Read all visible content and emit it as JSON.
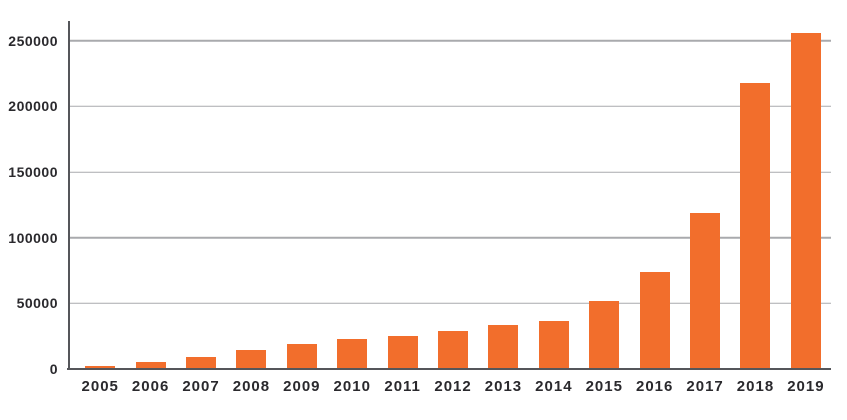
{
  "chart_data": {
    "type": "bar",
    "title": "",
    "xlabel": "",
    "ylabel": "",
    "categories": [
      "2005",
      "2006",
      "2007",
      "2008",
      "2009",
      "2010",
      "2011",
      "2012",
      "2013",
      "2014",
      "2015",
      "2016",
      "2017",
      "2018",
      "2019"
    ],
    "values": [
      2000,
      5500,
      9500,
      14500,
      19000,
      22500,
      25000,
      29000,
      33500,
      36500,
      51500,
      74000,
      119000,
      218000,
      255500
    ],
    "yticks": [
      0,
      50000,
      100000,
      150000,
      200000,
      250000
    ],
    "ylim": [
      0,
      265000
    ],
    "grid": "horizontal-only",
    "legend_position": "none",
    "bar_color": "#f26e2c",
    "grid_color": "#a9aaad",
    "axis_color": "#55565a",
    "label_color": "#2a292d"
  }
}
